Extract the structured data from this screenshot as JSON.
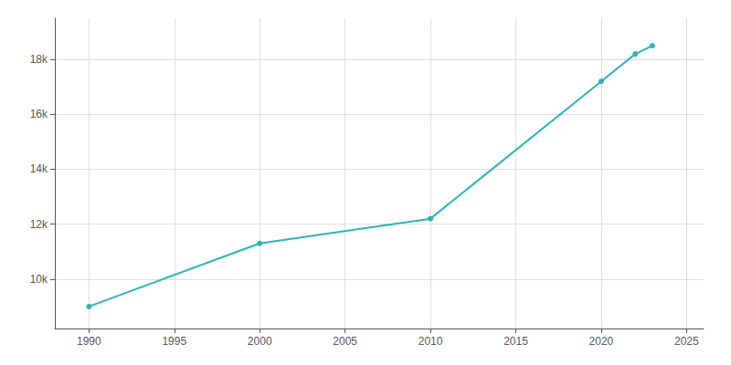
{
  "chart_data": {
    "type": "line",
    "x": [
      1990,
      2000,
      2010,
      2020,
      2022,
      2023
    ],
    "values": [
      9000,
      11300,
      12200,
      17200,
      18200,
      18500
    ],
    "color": "#2ab5b5",
    "marker": "circle",
    "xlim": [
      1988,
      2026
    ],
    "ylim": [
      8200,
      19500
    ],
    "xticks": [
      1990,
      1995,
      2000,
      2005,
      2010,
      2015,
      2020,
      2025
    ],
    "yticks": [
      {
        "value": 10000,
        "label": "10k"
      },
      {
        "value": 12000,
        "label": "12k"
      },
      {
        "value": 14000,
        "label": "14k"
      },
      {
        "value": 16000,
        "label": "16k"
      },
      {
        "value": 18000,
        "label": "18k"
      }
    ],
    "grid": true
  }
}
